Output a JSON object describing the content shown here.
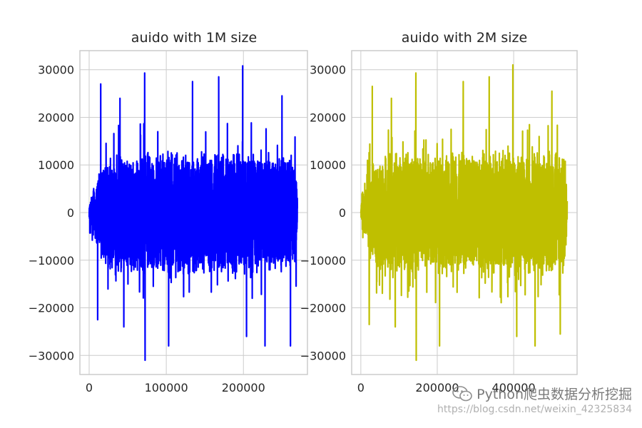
{
  "colors": {
    "left_series": "#0000ff",
    "right_series": "#bfbf00",
    "grid": "#cccccc",
    "text": "#262626"
  },
  "chart_data": [
    {
      "type": "line",
      "title": "auido with 1M size",
      "xlabel": "",
      "ylabel": "",
      "color": "#0000ff",
      "grid": true,
      "xlim": [
        -12000,
        283000
      ],
      "ylim": [
        -34000,
        34000
      ],
      "x_ticks": [
        0,
        100000,
        200000
      ],
      "x_tick_labels": [
        "0",
        "100000",
        "200000"
      ],
      "y_ticks": [
        30000,
        20000,
        10000,
        0,
        -10000,
        -20000,
        -30000
      ],
      "y_tick_labels": [
        "30000",
        "20000",
        "10000",
        "0",
        "−10000",
        "−20000",
        "−30000"
      ],
      "n_samples": 270000,
      "envelope": {
        "x": [
          0,
          5000,
          10000,
          12000,
          40000,
          100000,
          200000,
          262000,
          268000,
          270000
        ],
        "amplitude": [
          1000,
          4500,
          5000,
          9000,
          10500,
          11000,
          11000,
          10500,
          9000,
          3000
        ]
      },
      "peaks": [
        [
          15000,
          27000
        ],
        [
          40000,
          24000
        ],
        [
          72000,
          29300
        ],
        [
          72500,
          -31000
        ],
        [
          103000,
          -28000
        ],
        [
          134000,
          27500
        ],
        [
          168000,
          28500
        ],
        [
          199000,
          30800
        ],
        [
          204000,
          -26000
        ],
        [
          228000,
          -28000
        ],
        [
          261000,
          -28000
        ],
        [
          250000,
          24500
        ],
        [
          11000,
          -22500
        ],
        [
          45000,
          -24000
        ]
      ]
    },
    {
      "type": "line",
      "title": "auido with 2M size",
      "xlabel": "",
      "ylabel": "",
      "color": "#bfbf00",
      "grid": true,
      "xlim": [
        -24000,
        566000
      ],
      "ylim": [
        -34000,
        34000
      ],
      "x_ticks": [
        0,
        200000,
        400000
      ],
      "x_tick_labels": [
        "0",
        "200000",
        "400000"
      ],
      "y_ticks": [
        30000,
        20000,
        10000,
        0,
        -10000,
        -20000,
        -30000
      ],
      "y_tick_labels": [
        "30000",
        "20000",
        "10000",
        "0",
        "−10000",
        "−20000",
        "−30000"
      ],
      "n_samples": 540000,
      "envelope": {
        "x": [
          0,
          10000,
          20000,
          24000,
          80000,
          200000,
          400000,
          524000,
          536000,
          540000
        ],
        "amplitude": [
          1000,
          4500,
          5000,
          9000,
          10500,
          11000,
          11000,
          10500,
          9000,
          3000
        ]
      },
      "peaks": [
        [
          30000,
          26500
        ],
        [
          80000,
          24000
        ],
        [
          144000,
          29300
        ],
        [
          145000,
          -31000
        ],
        [
          206000,
          -28000
        ],
        [
          268000,
          27500
        ],
        [
          336000,
          28500
        ],
        [
          398000,
          31000
        ],
        [
          408000,
          -26000
        ],
        [
          456000,
          -28000
        ],
        [
          522000,
          -25500
        ],
        [
          500000,
          25500
        ],
        [
          22000,
          -23500
        ],
        [
          90000,
          -24000
        ]
      ]
    }
  ],
  "watermark": {
    "text": "Python爬虫数据分析挖掘",
    "url": "https://blog.csdn.net/weixin_42325834",
    "icon": "wechat-icon"
  }
}
